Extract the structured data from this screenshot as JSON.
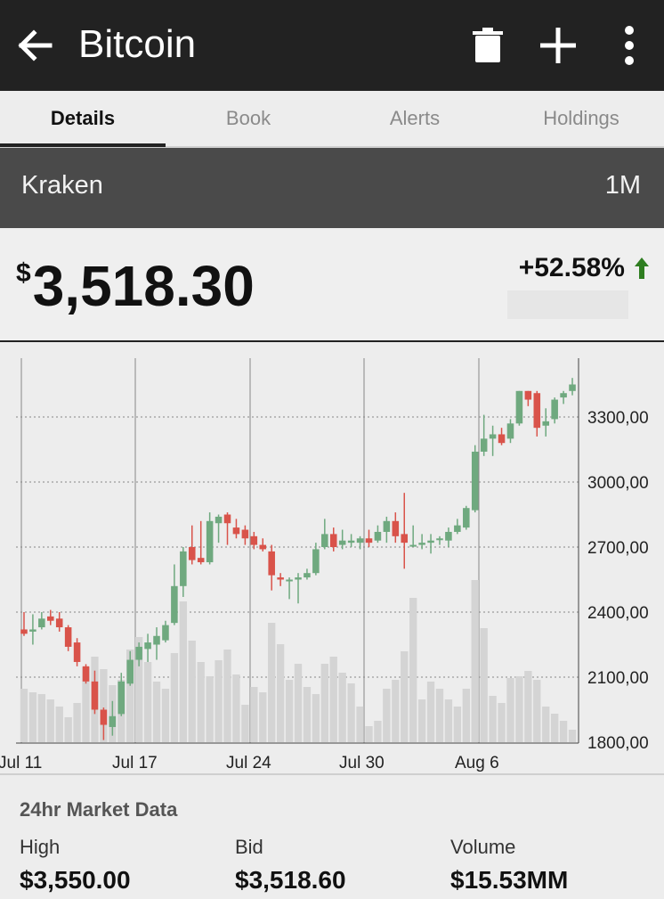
{
  "header": {
    "title": "Bitcoin",
    "colors": {
      "bar": "#222222",
      "icon": "#ffffff"
    },
    "icons": [
      "back-arrow-icon",
      "trash-icon",
      "plus-icon",
      "more-vert-icon"
    ]
  },
  "tabs": [
    {
      "label": "Details",
      "active": true
    },
    {
      "label": "Book",
      "active": false
    },
    {
      "label": "Alerts",
      "active": false
    },
    {
      "label": "Holdings",
      "active": false
    }
  ],
  "exchange": {
    "name": "Kraken",
    "range": "1M"
  },
  "price": {
    "currency_symbol": "$",
    "value": "3,518.30",
    "change": "+52.58%",
    "change_color": "#2e7d20"
  },
  "chart_data": {
    "type": "candlestick",
    "x_ticks": [
      "Jul 11",
      "Jul 17",
      "Jul 24",
      "Jul 30",
      "Aug 6"
    ],
    "y_ticks": [
      "3300,00",
      "3000,00",
      "2700,00",
      "2400,00",
      "2100,00",
      "1800,00"
    ],
    "y_tick_values": [
      3300,
      3000,
      2700,
      2400,
      2100,
      1800
    ],
    "ylim": [
      1800,
      3550
    ],
    "grid": true,
    "colors": {
      "up": "#6fa97f",
      "down": "#d9534a",
      "volume": "#d4d4d4",
      "grid": "#888888"
    },
    "candles": [
      [
        2320,
        2300,
        2400,
        2290,
        0.3
      ],
      [
        2310,
        2320,
        2390,
        2250,
        0.28
      ],
      [
        2330,
        2370,
        2400,
        2320,
        0.27
      ],
      [
        2380,
        2360,
        2410,
        2340,
        0.24
      ],
      [
        2370,
        2330,
        2400,
        2310,
        0.2
      ],
      [
        2330,
        2240,
        2340,
        2220,
        0.14
      ],
      [
        2260,
        2170,
        2280,
        2150,
        0.22
      ],
      [
        2150,
        2080,
        2160,
        2070,
        0.42
      ],
      [
        2080,
        1950,
        2130,
        1930,
        0.48
      ],
      [
        1950,
        1880,
        1960,
        1810,
        0.41
      ],
      [
        1870,
        1920,
        1990,
        1830,
        0.32
      ],
      [
        1930,
        2080,
        2120,
        1920,
        0.35
      ],
      [
        2070,
        2180,
        2220,
        2060,
        0.52
      ],
      [
        2180,
        2240,
        2260,
        2150,
        0.59
      ],
      [
        2230,
        2260,
        2300,
        2170,
        0.45
      ],
      [
        2250,
        2290,
        2330,
        2180,
        0.34
      ],
      [
        2270,
        2340,
        2360,
        2260,
        0.3
      ],
      [
        2350,
        2520,
        2620,
        2340,
        0.5
      ],
      [
        2520,
        2680,
        2700,
        2470,
        0.79
      ],
      [
        2700,
        2640,
        2800,
        2620,
        0.57
      ],
      [
        2650,
        2630,
        2820,
        2620,
        0.45
      ],
      [
        2630,
        2820,
        2860,
        2620,
        0.37
      ],
      [
        2810,
        2840,
        2850,
        2720,
        0.46
      ],
      [
        2850,
        2810,
        2860,
        2710,
        0.52
      ],
      [
        2790,
        2760,
        2830,
        2740,
        0.38
      ],
      [
        2780,
        2740,
        2800,
        2710,
        0.21
      ],
      [
        2750,
        2710,
        2770,
        2690,
        0.31
      ],
      [
        2710,
        2690,
        2740,
        2680,
        0.28
      ],
      [
        2680,
        2570,
        2710,
        2500,
        0.67
      ],
      [
        2560,
        2550,
        2580,
        2520,
        0.55
      ],
      [
        2550,
        2550,
        2560,
        2460,
        0.35
      ],
      [
        2550,
        2560,
        2580,
        2440,
        0.44
      ],
      [
        2560,
        2580,
        2600,
        2550,
        0.31
      ],
      [
        2580,
        2690,
        2720,
        2570,
        0.27
      ],
      [
        2700,
        2760,
        2830,
        2690,
        0.44
      ],
      [
        2760,
        2700,
        2790,
        2680,
        0.48
      ],
      [
        2710,
        2730,
        2780,
        2690,
        0.39
      ],
      [
        2720,
        2730,
        2760,
        2700,
        0.33
      ],
      [
        2720,
        2740,
        2750,
        2690,
        0.2
      ],
      [
        2740,
        2720,
        2780,
        2700,
        0.09
      ],
      [
        2730,
        2770,
        2800,
        2720,
        0.12
      ],
      [
        2770,
        2820,
        2840,
        2720,
        0.3
      ],
      [
        2820,
        2750,
        2860,
        2720,
        0.35
      ],
      [
        2760,
        2720,
        2950,
        2600,
        0.51
      ],
      [
        2710,
        2710,
        2800,
        2700,
        0.81
      ],
      [
        2710,
        2720,
        2760,
        2690,
        0.24
      ],
      [
        2720,
        2730,
        2760,
        2670,
        0.34
      ],
      [
        2740,
        2740,
        2750,
        2710,
        0.3
      ],
      [
        2730,
        2770,
        2790,
        2700,
        0.24
      ],
      [
        2770,
        2800,
        2830,
        2760,
        0.2
      ],
      [
        2790,
        2880,
        2890,
        2780,
        0.3
      ],
      [
        2870,
        3140,
        3170,
        2860,
        0.91
      ],
      [
        3140,
        3200,
        3310,
        3120,
        0.64
      ],
      [
        3200,
        3220,
        3260,
        3120,
        0.26
      ],
      [
        3220,
        3180,
        3250,
        3170,
        0.22
      ],
      [
        3200,
        3270,
        3290,
        3180,
        0.36
      ],
      [
        3270,
        3420,
        3420,
        3260,
        0.37
      ],
      [
        3420,
        3380,
        3420,
        3350,
        0.4
      ],
      [
        3410,
        3250,
        3420,
        3210,
        0.35
      ],
      [
        3260,
        3280,
        3340,
        3210,
        0.2
      ],
      [
        3290,
        3380,
        3390,
        3270,
        0.16
      ],
      [
        3390,
        3410,
        3420,
        3360,
        0.12
      ],
      [
        3420,
        3450,
        3480,
        3400,
        0.07
      ]
    ]
  },
  "market": {
    "title": "24hr Market Data",
    "items": [
      {
        "label": "High",
        "value": "$3,550.00"
      },
      {
        "label": "Bid",
        "value": "$3,518.60"
      },
      {
        "label": "Volume",
        "value": "$15.53MM"
      }
    ]
  }
}
